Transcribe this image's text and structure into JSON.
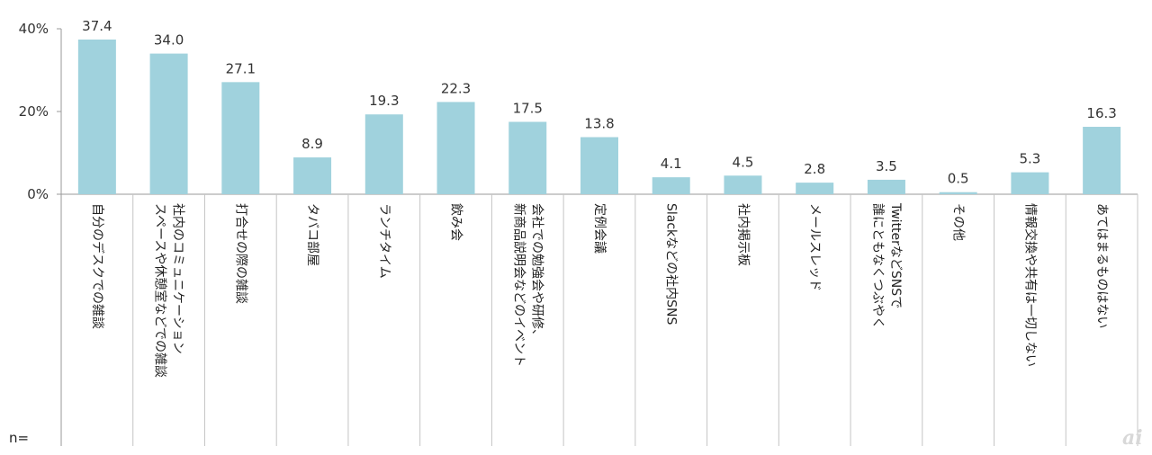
{
  "chart_data": {
    "type": "bar",
    "categories": [
      [
        "自分のデスクでの雑談"
      ],
      [
        "社内のコミュニケーション",
        "スペースや休憩室などでの雑談"
      ],
      [
        "打合せの際の雑談"
      ],
      [
        "タバコ部屋"
      ],
      [
        "ランチタイム"
      ],
      [
        "飲み会"
      ],
      [
        "会社での勉強会や研修、",
        "新商品説明会などのイベント"
      ],
      [
        "定例会議"
      ],
      [
        "Slackなどの社内SNS"
      ],
      [
        "社内掲示板"
      ],
      [
        "メールスレッド"
      ],
      [
        "TwitterなどSNSで",
        "誰にともなくつぶやく"
      ],
      [
        "その他"
      ],
      [
        "情報交換や共有は一切しない"
      ],
      [
        "あてはまるものはない"
      ]
    ],
    "values": [
      37.4,
      34.0,
      27.1,
      8.9,
      19.3,
      22.3,
      17.5,
      13.8,
      4.1,
      4.5,
      2.8,
      3.5,
      0.5,
      5.3,
      16.3
    ],
    "value_labels": [
      "37.4",
      "34.0",
      "27.1",
      "8.9",
      "19.3",
      "22.3",
      "17.5",
      "13.8",
      "4.1",
      "4.5",
      "2.8",
      "3.5",
      "0.5",
      "5.3",
      "16.3"
    ],
    "yticks": [
      "0%",
      "20%",
      "40%"
    ],
    "ytick_values": [
      0,
      20,
      40
    ],
    "ylim": [
      0,
      40
    ],
    "bar_color": "#a0d2dd",
    "grid": false
  },
  "footer": {
    "n_label": "n="
  },
  "watermark": "ai"
}
